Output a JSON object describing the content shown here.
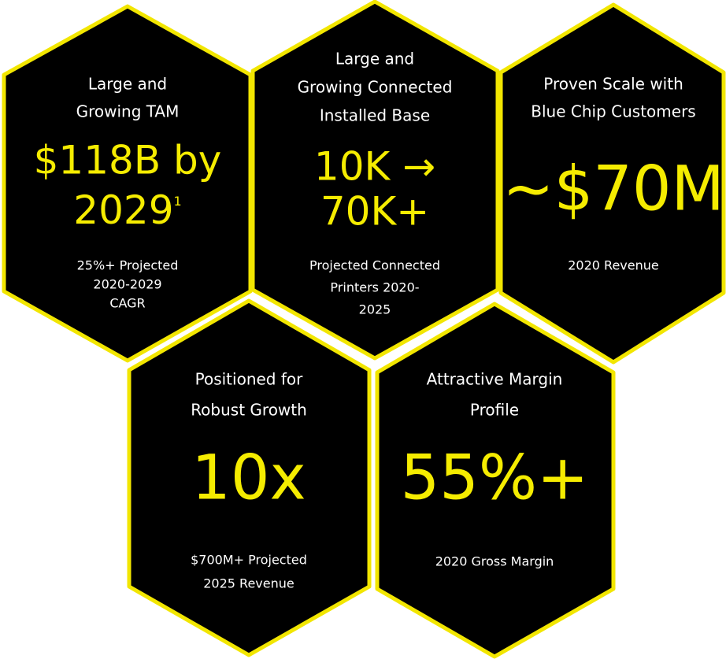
{
  "hexagons": [
    {
      "heading": [
        "Large and",
        "Growing TAM"
      ],
      "value": [
        "$118B by",
        "2029"
      ],
      "footnote": "1",
      "note": [
        "25%+ Projected",
        "2020-2029",
        "CAGR"
      ]
    },
    {
      "heading": [
        "Large and",
        "Growing Connected",
        "Installed Base"
      ],
      "value": [
        "10K →",
        "70K+"
      ],
      "note": [
        "Projected Connected",
        "Printers 2020-",
        "2025"
      ]
    },
    {
      "heading": [
        "Proven Scale with",
        "Blue Chip Customers"
      ],
      "value": [
        "~$70M"
      ],
      "note": [
        "2020 Revenue"
      ]
    },
    {
      "heading": [
        "Positioned for",
        "Robust Growth"
      ],
      "value": [
        "10x"
      ],
      "note": [
        "$700M+ Projected",
        "2025 Revenue"
      ]
    },
    {
      "heading": [
        "Attractive Margin",
        "Profile"
      ],
      "value": [
        "55%+"
      ],
      "note": [
        "2020 Gross Margin"
      ]
    }
  ]
}
